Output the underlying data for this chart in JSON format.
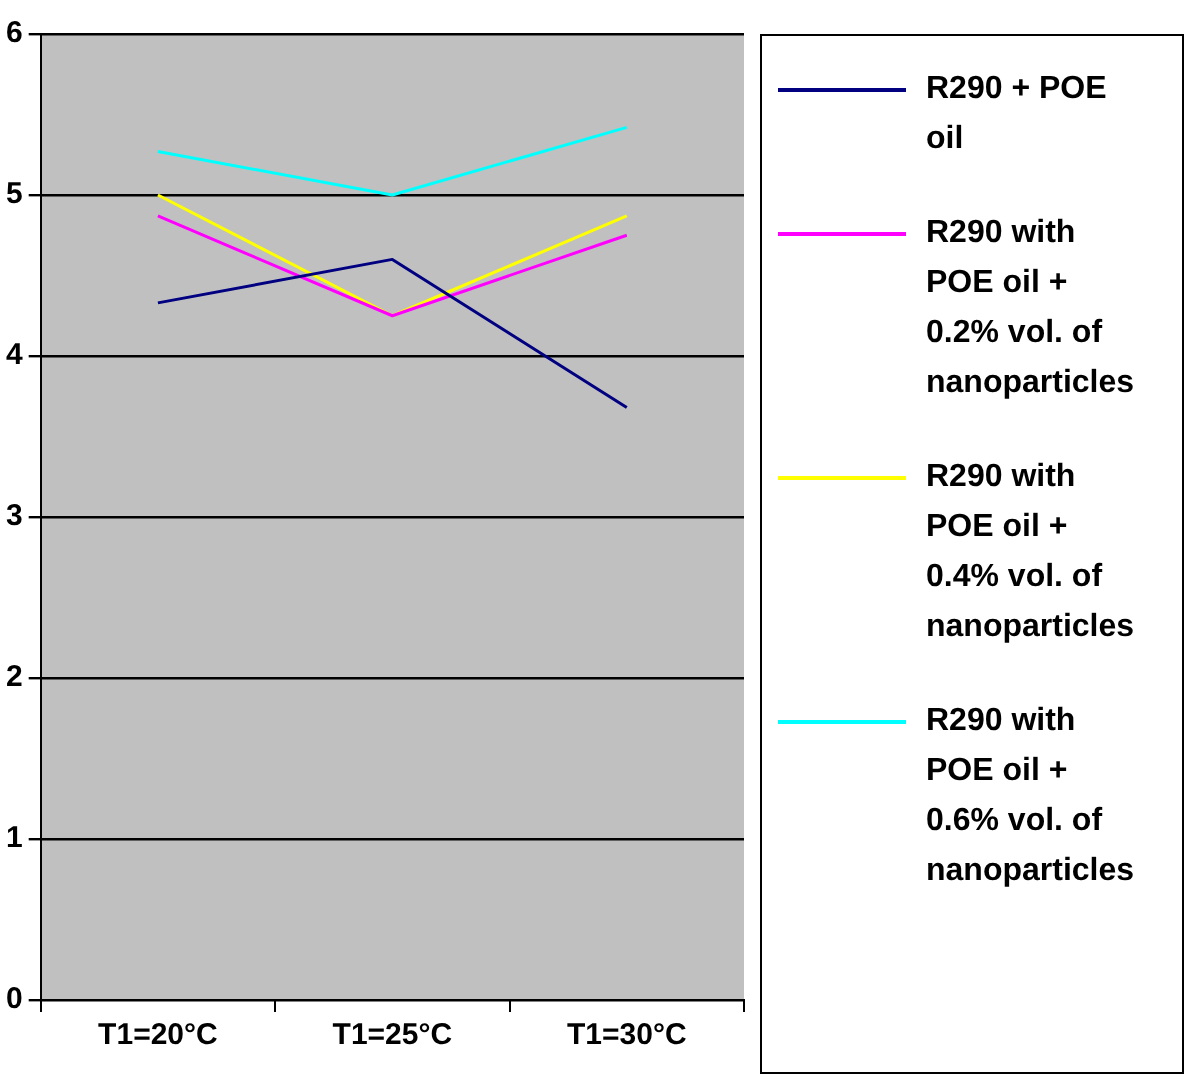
{
  "chart_data": {
    "type": "line",
    "categories": [
      "T1=20°C",
      "T1=25°C",
      "T1=30°C"
    ],
    "series": [
      {
        "name": "R290 + POE oil",
        "color": "#000080",
        "values": [
          4.33,
          4.6,
          3.68
        ]
      },
      {
        "name": "R290 with POE oil + 0.2% vol. of nanoparticles",
        "color": "#ff00ff",
        "values": [
          4.87,
          4.25,
          4.75
        ]
      },
      {
        "name": "R290 with POE oil + 0.4% vol. of nanoparticles",
        "color": "#ffff00",
        "values": [
          5.0,
          4.25,
          4.87
        ]
      },
      {
        "name": "R290 with POE oil + 0.6% vol. of nanoparticles",
        "color": "#00ffff",
        "values": [
          5.27,
          5.0,
          5.42
        ]
      }
    ],
    "ylim": [
      0,
      6
    ],
    "yticks": [
      0,
      1,
      2,
      3,
      4,
      5,
      6
    ],
    "grid": "y",
    "legend": "right",
    "marker": "none",
    "line_style": "solid"
  }
}
